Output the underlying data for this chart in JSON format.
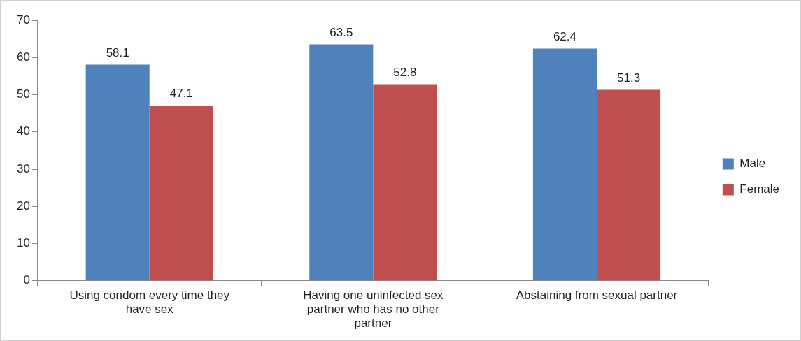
{
  "chart_data": {
    "type": "bar",
    "categories": [
      "Using condom every time they have sex",
      "Having one uninfected sex partner who has no other partner",
      "Abstaining from sexual partner"
    ],
    "series": [
      {
        "name": "Male",
        "color": "#4f81bd",
        "values": [
          58.1,
          63.5,
          62.4
        ]
      },
      {
        "name": "Female",
        "color": "#c0504d",
        "values": [
          47.1,
          52.8,
          51.3
        ]
      }
    ],
    "ylim": [
      0,
      70
    ],
    "yticks": [
      0,
      10,
      20,
      30,
      40,
      50,
      60,
      70
    ],
    "grid": false,
    "legend": "right",
    "data_labels": true
  }
}
